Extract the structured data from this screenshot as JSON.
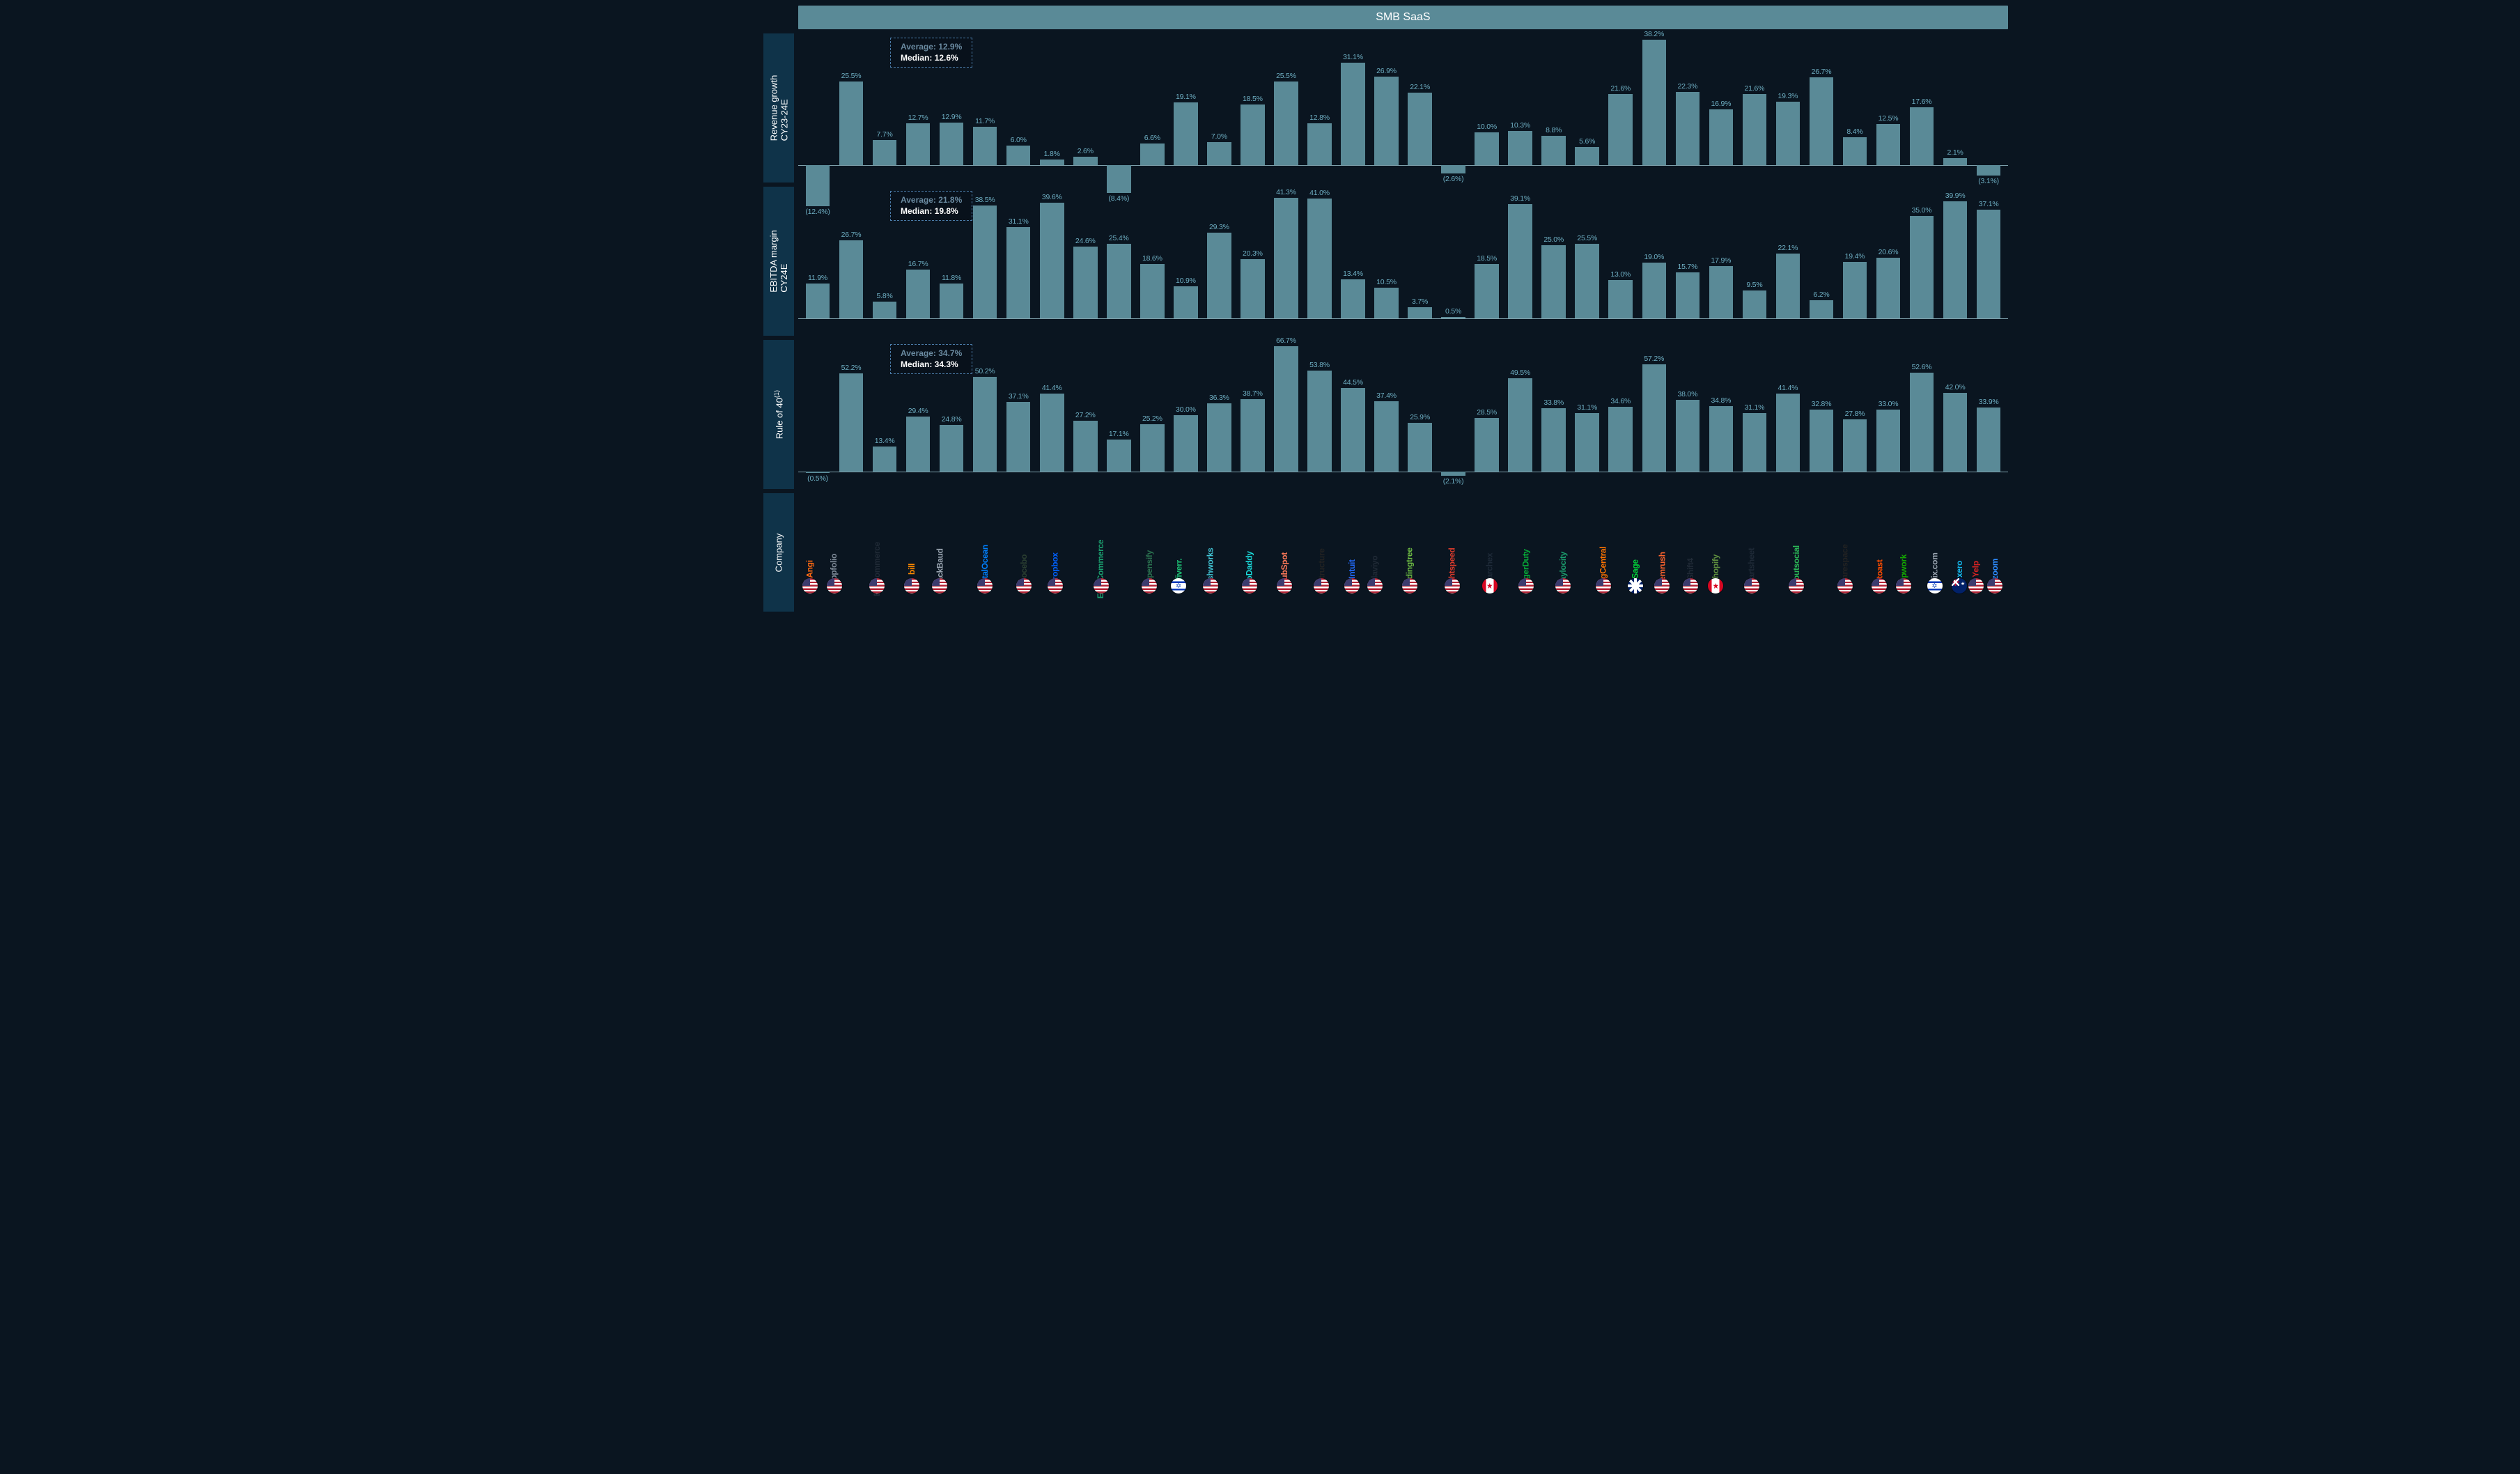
{
  "header": {
    "title": "SMB SaaS"
  },
  "colors": {
    "bar": "#5a8a97",
    "value_label": "#6eaec2",
    "row_label_bg": "#0f3349",
    "stats_border": "#4a7ba8",
    "page_bg": "#0a1520"
  },
  "rows": [
    {
      "id": "revenue_growth",
      "label_html": "Revenue growth<br>CY23-24E",
      "stats": {
        "average": "12.9%",
        "median": "12.6%"
      },
      "ylim": [
        -15,
        40
      ],
      "unit": "%"
    },
    {
      "id": "ebitda_margin",
      "label_html": "EBITDA margin<br>CY24E",
      "stats": {
        "average": "21.8%",
        "median": "19.8%"
      },
      "ylim": [
        0,
        45
      ],
      "unit": "%"
    },
    {
      "id": "rule_of_40",
      "label_html": "Rule of 40<sup>(1)</sup>",
      "stats": {
        "average": "34.7%",
        "median": "34.3%"
      },
      "ylim": [
        -5,
        70
      ],
      "unit": "%"
    }
  ],
  "companies": [
    {
      "name": "Angi",
      "logo_color": "#ff6a13",
      "country": "us",
      "revenue_growth": -12.4,
      "ebitda_margin": 11.9,
      "rule_of_40": -0.5
    },
    {
      "name": "appfolio",
      "logo_color": "#7e8a97",
      "country": "us",
      "revenue_growth": 25.5,
      "ebitda_margin": 26.7,
      "rule_of_40": 52.2
    },
    {
      "name": "BigCommerce",
      "logo_color": "#202a36",
      "country": "us",
      "revenue_growth": 7.7,
      "ebitda_margin": 5.8,
      "rule_of_40": 13.4
    },
    {
      "name": "bill",
      "logo_color": "#ff8a00",
      "country": "us",
      "revenue_growth": 12.7,
      "ebitda_margin": 16.7,
      "rule_of_40": 29.4
    },
    {
      "name": "BlackBaud",
      "logo_color": "#9aa5b1",
      "country": "us",
      "revenue_growth": 12.9,
      "ebitda_margin": 11.8,
      "rule_of_40": 24.8
    },
    {
      "name": "DigitalOcean",
      "logo_color": "#0080ff",
      "country": "us",
      "revenue_growth": 11.7,
      "ebitda_margin": 38.5,
      "rule_of_40": 50.2
    },
    {
      "name": "Docebo",
      "logo_color": "#2b3f31",
      "country": "us",
      "revenue_growth": 6.0,
      "ebitda_margin": 31.1,
      "rule_of_40": 37.1
    },
    {
      "name": "Dropbox",
      "logo_color": "#0061ff",
      "country": "us",
      "revenue_growth": 1.8,
      "ebitda_margin": 39.6,
      "rule_of_40": 41.4
    },
    {
      "name": "EverCommerce",
      "logo_color": "#1b9e6e",
      "country": "us",
      "revenue_growth": 2.6,
      "ebitda_margin": 24.6,
      "rule_of_40": 27.2
    },
    {
      "name": "Expensify",
      "logo_color": "#2a6f4e",
      "country": "us",
      "revenue_growth": -8.4,
      "ebitda_margin": 25.4,
      "rule_of_40": 17.1
    },
    {
      "name": "fiverr.",
      "logo_color": "#1dbf73",
      "country": "il",
      "revenue_growth": 6.6,
      "ebitda_margin": 18.6,
      "rule_of_40": 25.2
    },
    {
      "name": "freshworks",
      "logo_color": "#42c5d6",
      "country": "us",
      "revenue_growth": 19.1,
      "ebitda_margin": 10.9,
      "rule_of_40": 30.0
    },
    {
      "name": "GoDaddy",
      "logo_color": "#1bdbdb",
      "country": "us",
      "revenue_growth": 7.0,
      "ebitda_margin": 29.3,
      "rule_of_40": 36.3
    },
    {
      "name": "HubSpot",
      "logo_color": "#ff7a59",
      "country": "us",
      "revenue_growth": 18.5,
      "ebitda_margin": 20.3,
      "rule_of_40": 38.7
    },
    {
      "name": "Instructure",
      "logo_color": "#222222",
      "country": "us",
      "revenue_growth": 25.5,
      "ebitda_margin": 41.3,
      "rule_of_40": 66.7
    },
    {
      "name": "Intuit",
      "logo_color": "#236cff",
      "country": "us",
      "revenue_growth": 12.8,
      "ebitda_margin": 41.0,
      "rule_of_40": 53.8
    },
    {
      "name": "klaviyo",
      "logo_color": "#202a36",
      "country": "us",
      "revenue_growth": 31.1,
      "ebitda_margin": 13.4,
      "rule_of_40": 44.5
    },
    {
      "name": "lendingtree",
      "logo_color": "#6fbe44",
      "country": "us",
      "revenue_growth": 26.9,
      "ebitda_margin": 10.5,
      "rule_of_40": 37.4
    },
    {
      "name": "Lightspeed",
      "logo_color": "#d73a2c",
      "country": "us",
      "revenue_growth": 22.1,
      "ebitda_margin": 3.7,
      "rule_of_40": 25.9
    },
    {
      "name": "Marchex",
      "logo_color": "#1e2a38",
      "country": "ca",
      "revenue_growth": -2.6,
      "ebitda_margin": 0.5,
      "rule_of_40": -2.1
    },
    {
      "name": "PagerDuty",
      "logo_color": "#06ac38",
      "country": "us",
      "revenue_growth": 10.0,
      "ebitda_margin": 18.5,
      "rule_of_40": 28.5
    },
    {
      "name": "Paylocity",
      "logo_color": "#1b9e6e",
      "country": "us",
      "revenue_growth": 10.3,
      "ebitda_margin": 39.1,
      "rule_of_40": 49.5
    },
    {
      "name": "RingCentral",
      "logo_color": "#ff7300",
      "country": "us",
      "revenue_growth": 8.8,
      "ebitda_margin": 25.0,
      "rule_of_40": 33.8
    },
    {
      "name": "Sage",
      "logo_color": "#00d639",
      "country": "uk",
      "revenue_growth": 5.6,
      "ebitda_margin": 25.5,
      "rule_of_40": 31.1
    },
    {
      "name": "Semrush",
      "logo_color": "#ff642d",
      "country": "us",
      "revenue_growth": 21.6,
      "ebitda_margin": 13.0,
      "rule_of_40": 34.6
    },
    {
      "name": "Shift4",
      "logo_color": "#202a36",
      "country": "us",
      "revenue_growth": 38.2,
      "ebitda_margin": 19.0,
      "rule_of_40": 57.2
    },
    {
      "name": "Shopify",
      "logo_color": "#5e8e3e",
      "country": "ca",
      "revenue_growth": 22.3,
      "ebitda_margin": 15.7,
      "rule_of_40": 38.0
    },
    {
      "name": "smartsheet",
      "logo_color": "#1f2a37",
      "country": "us",
      "revenue_growth": 16.9,
      "ebitda_margin": 17.9,
      "rule_of_40": 34.8
    },
    {
      "name": "sproutsocial",
      "logo_color": "#2bb656",
      "country": "us",
      "revenue_growth": 21.6,
      "ebitda_margin": 9.5,
      "rule_of_40": 31.1
    },
    {
      "name": "Squarespace",
      "logo_color": "#222222",
      "country": "us",
      "revenue_growth": 19.3,
      "ebitda_margin": 22.1,
      "rule_of_40": 41.4
    },
    {
      "name": "toast",
      "logo_color": "#ff4c00",
      "country": "us",
      "revenue_growth": 26.7,
      "ebitda_margin": 6.2,
      "rule_of_40": 32.8
    },
    {
      "name": "Upwork",
      "logo_color": "#14a800",
      "country": "us",
      "revenue_growth": 8.4,
      "ebitda_margin": 19.4,
      "rule_of_40": 27.8
    },
    {
      "name": "Wix.com",
      "logo_color": "#9aa5b1",
      "country": "il",
      "revenue_growth": 12.5,
      "ebitda_margin": 20.6,
      "rule_of_40": 33.0
    },
    {
      "name": "xero",
      "logo_color": "#13b5ea",
      "country": "au",
      "revenue_growth": 17.6,
      "ebitda_margin": 35.0,
      "rule_of_40": 52.6
    },
    {
      "name": "Yelp",
      "logo_color": "#d32323",
      "country": "us",
      "revenue_growth": 2.1,
      "ebitda_margin": 39.9,
      "rule_of_40": 42.0
    },
    {
      "name": "zoom",
      "logo_color": "#2d8cff",
      "country": "us",
      "revenue_growth": -3.1,
      "ebitda_margin": 37.1,
      "rule_of_40": 33.9
    }
  ]
}
